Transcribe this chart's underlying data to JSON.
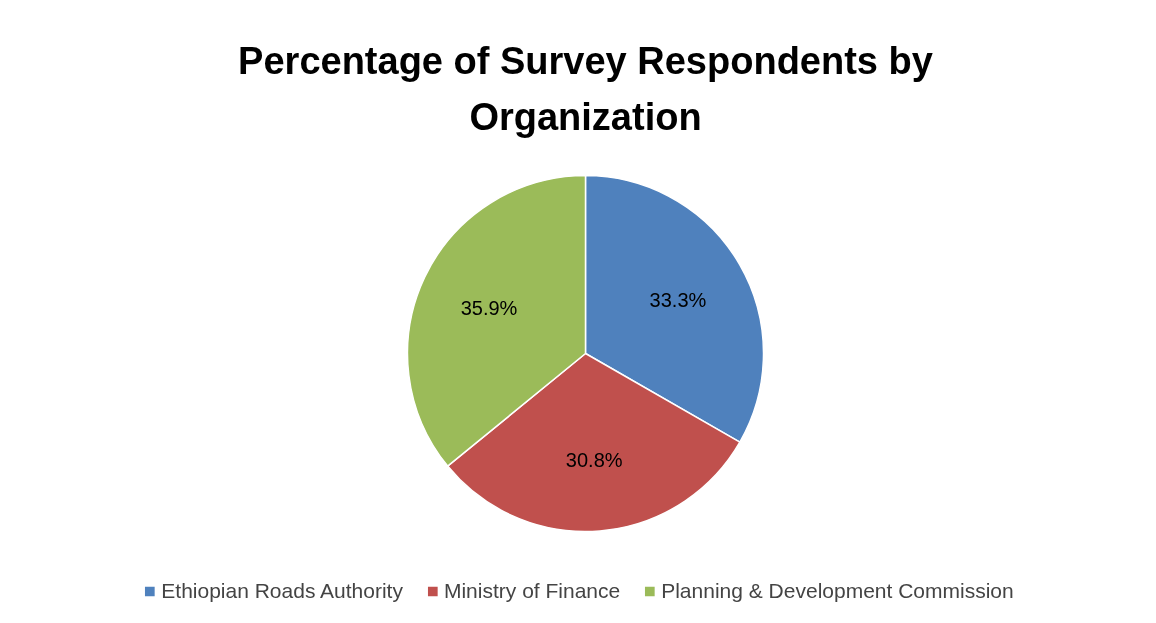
{
  "chart_data": {
    "type": "pie",
    "title": "Percentage of Survey Respondents by Organization",
    "categories": [
      "Ethiopian Roads Authority",
      "Ministry of Finance",
      "Planning & Development Commission"
    ],
    "values": [
      33.3,
      30.8,
      35.9
    ],
    "colors": [
      "#4f81bd",
      "#c0504d",
      "#9bbb59"
    ],
    "value_labels": [
      "33.3%",
      "30.8%",
      "35.9%"
    ],
    "legend": "bottom"
  }
}
